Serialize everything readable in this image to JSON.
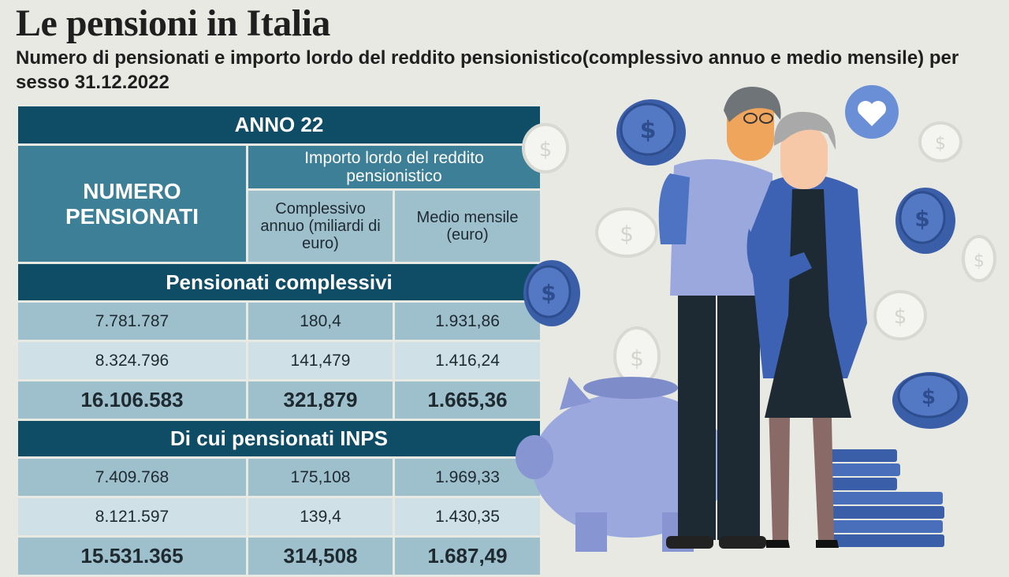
{
  "header": {
    "title": "Le pensioni in Italia",
    "subtitle": "Numero di pensionati e importo lordo del reddito pensionistico(complessivo annuo e medio mensile) per sesso 31.12.2022"
  },
  "chart_data": {
    "type": "table",
    "year_header": "ANNO 22",
    "columns": {
      "numero": "NUMERO PENSIONATI",
      "importo_group": "Importo lordo del reddito pensionistico",
      "complessivo": "Complessivo annuo (miliardi di euro)",
      "medio": "Medio mensile (euro)"
    },
    "sections": [
      {
        "title": "Pensionati complessivi",
        "rows": [
          {
            "numero": "7.781.787",
            "complessivo": "180,4",
            "medio": "1.931,86"
          },
          {
            "numero": "8.324.796",
            "complessivo": "141,479",
            "medio": "1.416,24"
          },
          {
            "numero": "16.106.583",
            "complessivo": "321,879",
            "medio": "1.665,36",
            "total": true
          }
        ]
      },
      {
        "title": "Di cui pensionati INPS",
        "rows": [
          {
            "numero": "7.409.768",
            "complessivo": "175,108",
            "medio": "1.969,33"
          },
          {
            "numero": "8.121.597",
            "complessivo": "139,4",
            "medio": "1.430,35"
          },
          {
            "numero": "15.531.365",
            "complessivo": "314,508",
            "medio": "1.687,49",
            "total": true
          }
        ]
      }
    ]
  },
  "colors": {
    "background": "#e9e9e4",
    "header_dark": "#0f4c65",
    "header_mid": "#3c7f97",
    "row_light": "#9ebfcc",
    "row_pale": "#cfe0e7"
  },
  "illustration": {
    "icons": [
      "coin-icon",
      "heart-icon",
      "piggy-bank-icon",
      "coin-stack-icon"
    ]
  }
}
